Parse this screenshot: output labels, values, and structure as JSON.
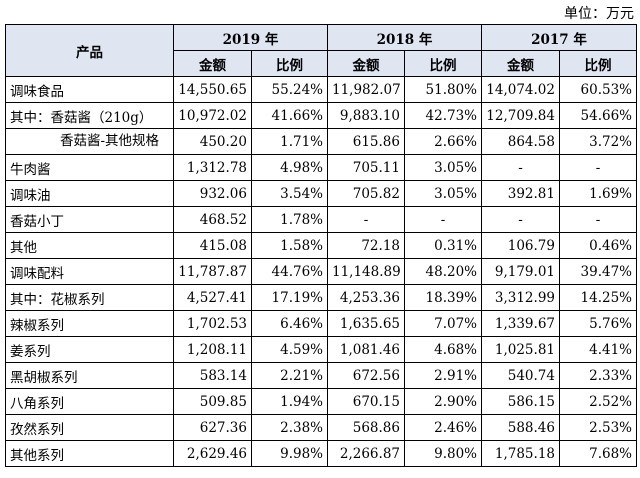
{
  "unit_label": "单位：万元",
  "header": {
    "product": "产品",
    "years": [
      "2019 年",
      "2018 年",
      "2017 年"
    ],
    "amount": "金额",
    "ratio": "比例"
  },
  "rows": [
    {
      "name": "调味食品",
      "style": "top",
      "cells": [
        "14,550.65",
        "55.24%",
        "11,982.07",
        "51.80%",
        "14,074.02",
        "60.53%"
      ]
    },
    {
      "name": "其中：香菇酱（210g）",
      "style": "top",
      "cells": [
        "10,972.02",
        "41.66%",
        "9,883.10",
        "42.73%",
        "12,709.84",
        "54.66%"
      ]
    },
    {
      "name": "香菇酱-其他规格",
      "style": "wrap",
      "cells": [
        "450.20",
        "1.71%",
        "615.86",
        "2.66%",
        "864.58",
        "3.72%"
      ]
    },
    {
      "name": "牛肉酱",
      "style": "indent",
      "cells": [
        "1,312.78",
        "4.98%",
        "705.11",
        "3.05%",
        "-",
        "-"
      ]
    },
    {
      "name": "调味油",
      "style": "indent",
      "cells": [
        "932.06",
        "3.54%",
        "705.82",
        "3.05%",
        "392.81",
        "1.69%"
      ]
    },
    {
      "name": "香菇小丁",
      "style": "indent",
      "cells": [
        "468.52",
        "1.78%",
        "-",
        "-",
        "-",
        "-"
      ]
    },
    {
      "name": "其他",
      "style": "indent",
      "cells": [
        "415.08",
        "1.58%",
        "72.18",
        "0.31%",
        "106.79",
        "0.46%"
      ]
    },
    {
      "name": "调味配料",
      "style": "top",
      "cells": [
        "11,787.87",
        "44.76%",
        "11,148.89",
        "48.20%",
        "9,179.01",
        "39.47%"
      ]
    },
    {
      "name": "其中：花椒系列",
      "style": "top",
      "cells": [
        "4,527.41",
        "17.19%",
        "4,253.36",
        "18.39%",
        "3,312.99",
        "14.25%"
      ]
    },
    {
      "name": "辣椒系列",
      "style": "indent",
      "cells": [
        "1,702.53",
        "6.46%",
        "1,635.65",
        "7.07%",
        "1,339.67",
        "5.76%"
      ]
    },
    {
      "name": "姜系列",
      "style": "indent",
      "cells": [
        "1,208.11",
        "4.59%",
        "1,081.46",
        "4.68%",
        "1,025.81",
        "4.41%"
      ]
    },
    {
      "name": "黑胡椒系列",
      "style": "indent",
      "cells": [
        "583.14",
        "2.21%",
        "672.56",
        "2.91%",
        "540.74",
        "2.33%"
      ]
    },
    {
      "name": "八角系列",
      "style": "indent",
      "cells": [
        "509.85",
        "1.94%",
        "670.15",
        "2.90%",
        "586.15",
        "2.52%"
      ]
    },
    {
      "name": "孜然系列",
      "style": "indent",
      "cells": [
        "627.36",
        "2.38%",
        "568.86",
        "2.46%",
        "588.46",
        "2.53%"
      ]
    },
    {
      "name": "其他系列",
      "style": "indent",
      "cells": [
        "2,629.46",
        "9.98%",
        "2,266.87",
        "9.80%",
        "1,785.18",
        "7.68%"
      ]
    }
  ]
}
